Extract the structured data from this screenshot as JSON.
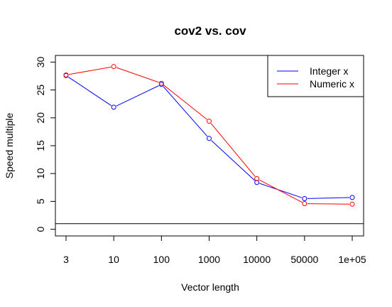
{
  "chart_data": {
    "type": "line",
    "title": "cov2 vs. cov",
    "xlabel": "Vector length",
    "ylabel": "Speed multiple",
    "categories": [
      "3",
      "10",
      "100",
      "1000",
      "10000",
      "50000",
      "1e+05"
    ],
    "yticks": [
      0,
      5,
      10,
      15,
      20,
      25,
      30
    ],
    "ylim": [
      -1.2,
      31.2
    ],
    "reference_line": 1,
    "legend_position": "top-right",
    "series": [
      {
        "name": "Integer x",
        "color": "#0000ff",
        "values": [
          27.6,
          21.9,
          26.0,
          16.3,
          8.4,
          5.5,
          5.7
        ]
      },
      {
        "name": "Numeric x",
        "color": "#ff0000",
        "values": [
          27.7,
          29.2,
          26.2,
          19.4,
          9.1,
          4.6,
          4.5
        ]
      }
    ],
    "grid": false
  }
}
